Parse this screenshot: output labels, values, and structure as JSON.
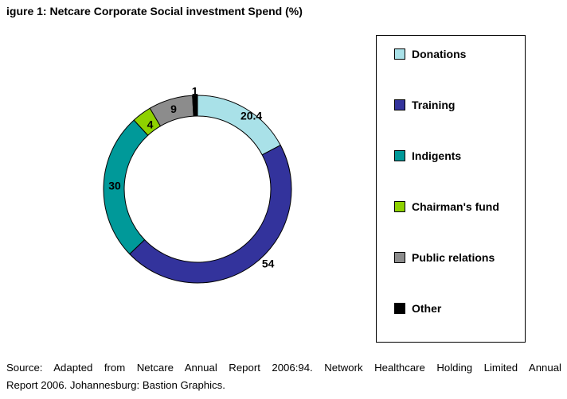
{
  "title": "igure 1: Netcare Corporate Social investment Spend (%)",
  "source_line1": "Source: Adapted from Netcare Annual Report 2006:94. Network Healthcare Holding Limited Annual",
  "source_line2": "Report 2006. Johannesburg: Bastion Graphics.",
  "chart_data": {
    "type": "pie",
    "donut": true,
    "title": "igure 1: Netcare Corporate Social investment Spend (%)",
    "legend_position": "right",
    "slices": [
      {
        "name": "Donations",
        "value": 20.4,
        "label": "20.4",
        "color": "#a9e1e8"
      },
      {
        "name": "Training",
        "value": 54,
        "label": "54",
        "color": "#33339c"
      },
      {
        "name": "Indigents",
        "value": 30,
        "label": "30",
        "color": "#009999"
      },
      {
        "name": "Chairman's fund",
        "value": 4,
        "label": "4",
        "color": "#8ed100"
      },
      {
        "name": "Public relations",
        "value": 9,
        "label": "9",
        "color": "#8c8c8c"
      },
      {
        "name": "Other",
        "value": 1,
        "label": "1",
        "color": "#000000"
      }
    ]
  }
}
